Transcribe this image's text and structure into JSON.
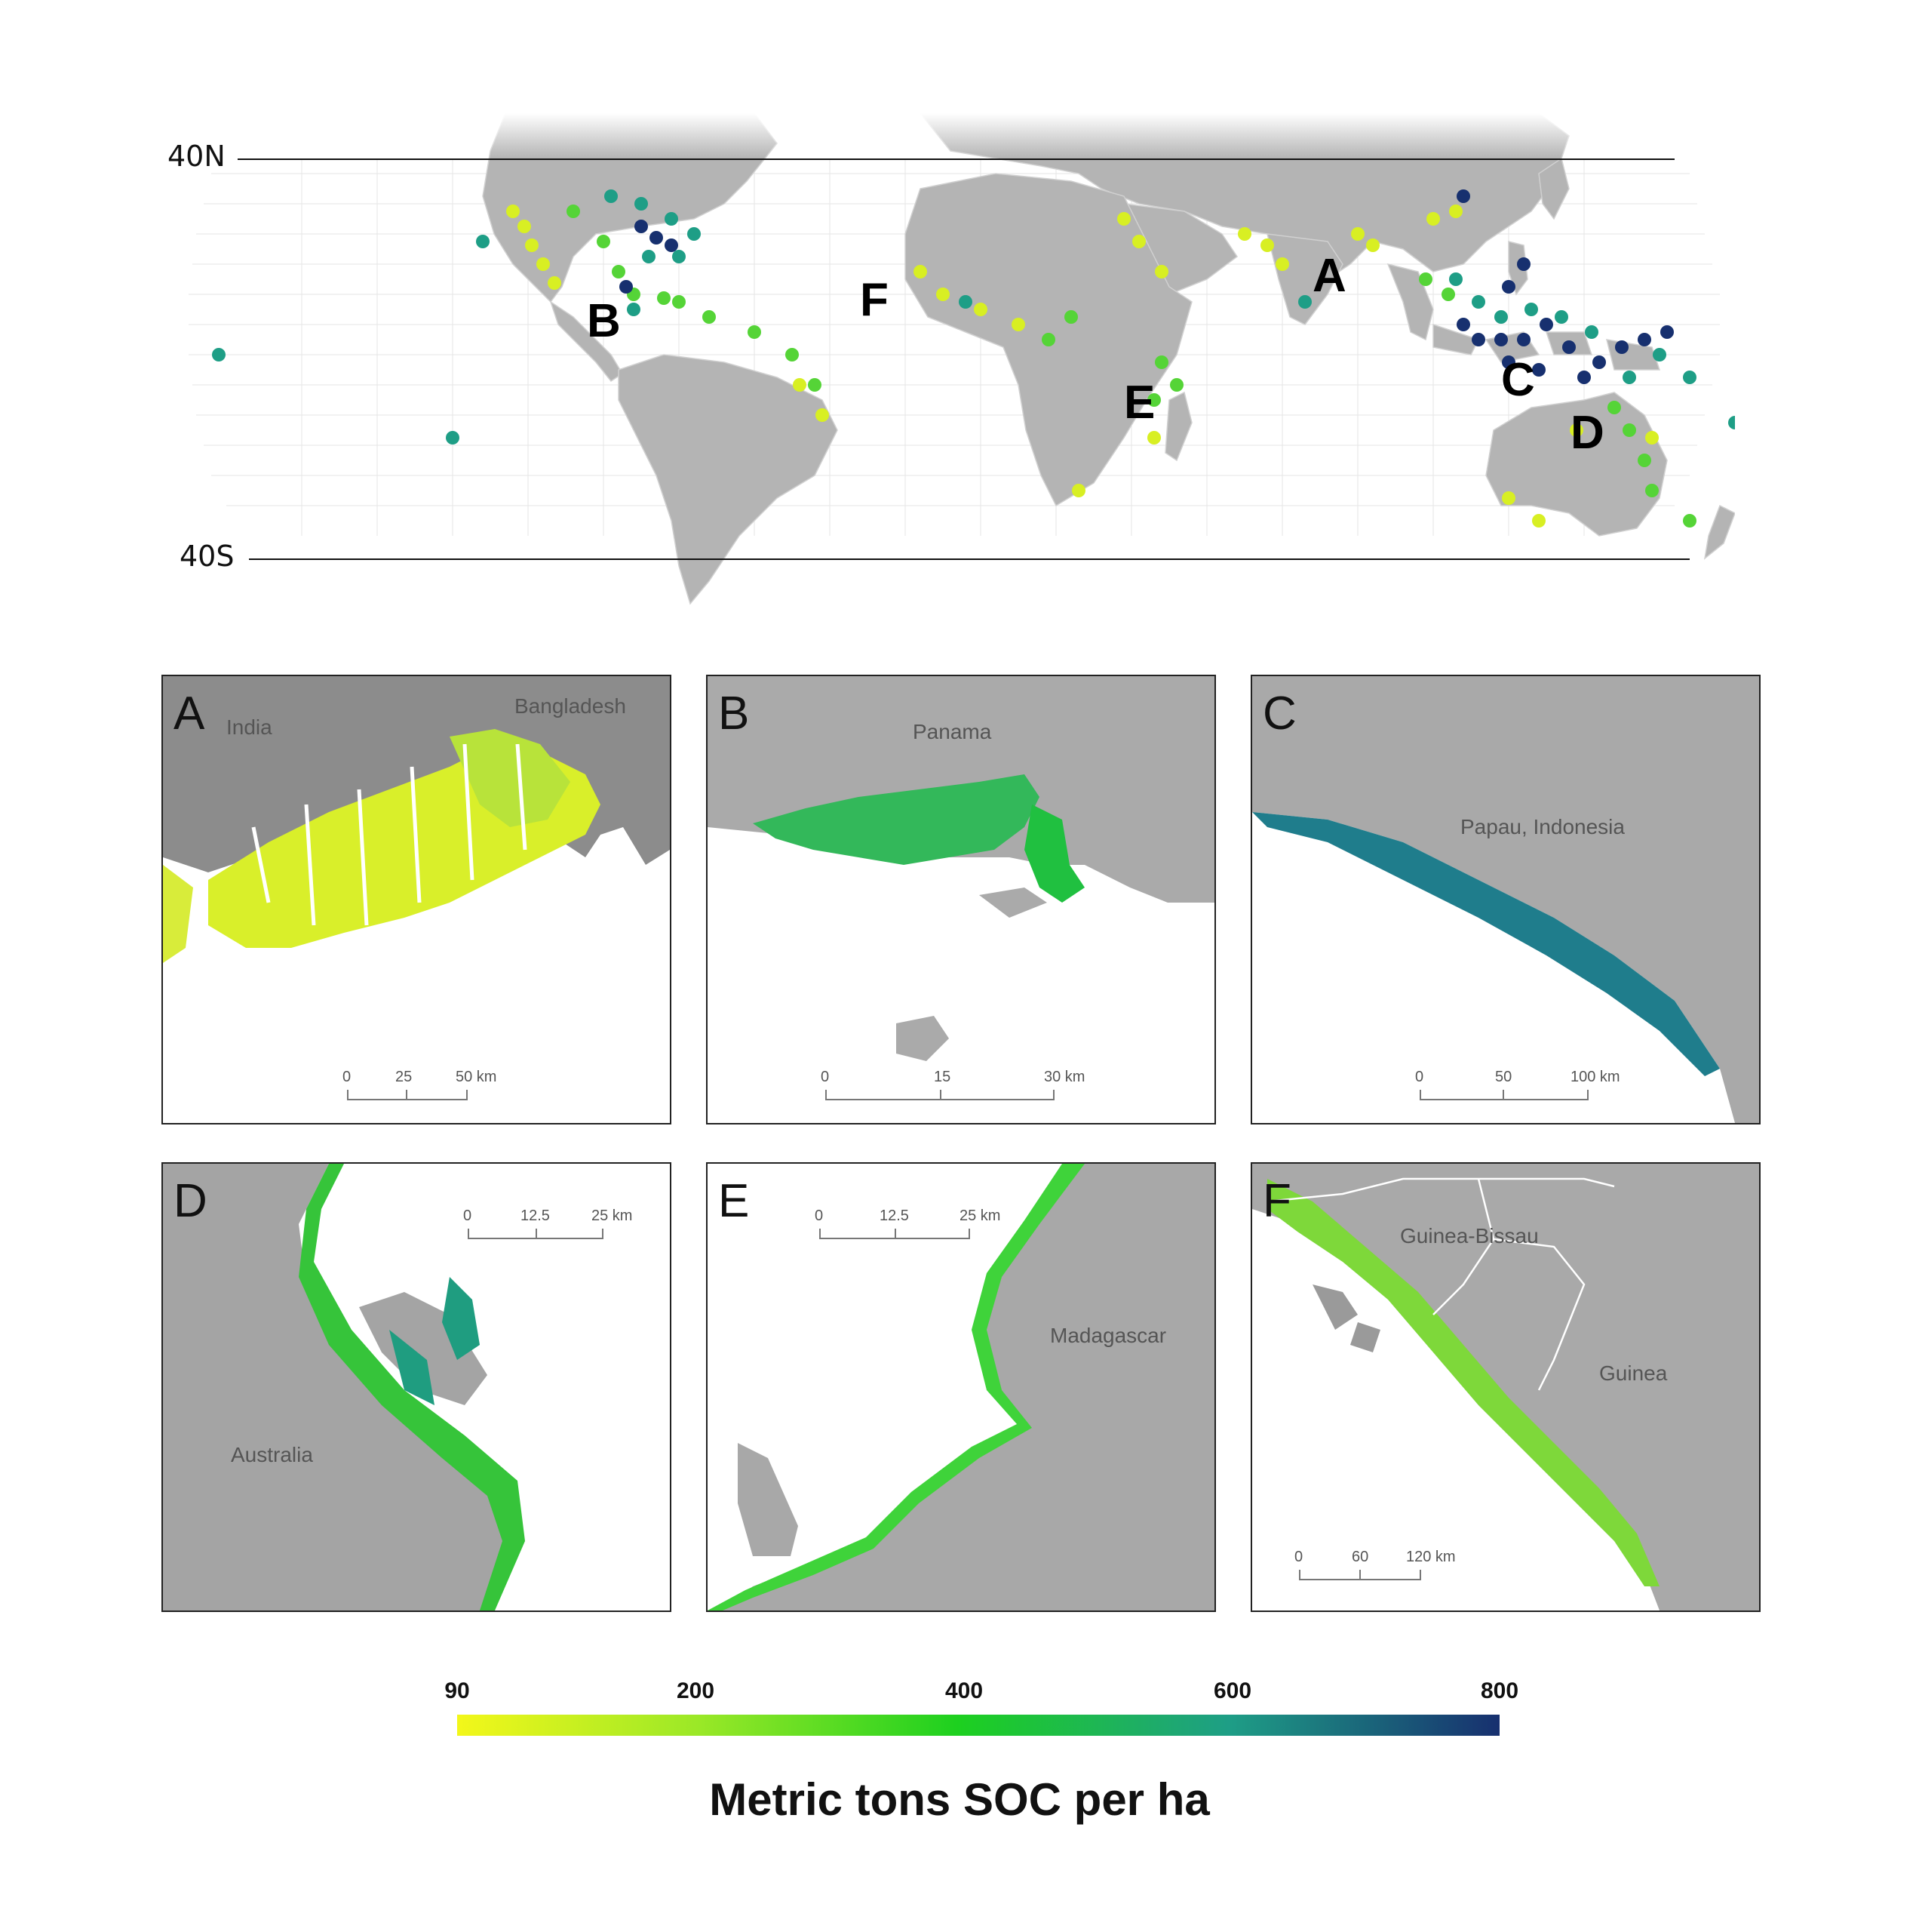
{
  "world_map": {
    "lat_labels": {
      "north": "40N",
      "south": "40S"
    },
    "region_letters": [
      "A",
      "B",
      "C",
      "D",
      "E",
      "F"
    ]
  },
  "panels": [
    {
      "letter": "A",
      "places": [
        "India",
        "Bangladesh"
      ],
      "scale": [
        "0",
        "25",
        "50 km"
      ]
    },
    {
      "letter": "B",
      "places": [
        "Panama"
      ],
      "scale": [
        "0",
        "15",
        "30 km"
      ]
    },
    {
      "letter": "C",
      "places": [
        "Papau, Indonesia"
      ],
      "scale": [
        "0",
        "50",
        "100 km"
      ]
    },
    {
      "letter": "D",
      "places": [
        "Australia"
      ],
      "scale": [
        "0",
        "12.5",
        "25 km"
      ]
    },
    {
      "letter": "E",
      "places": [
        "Madagascar"
      ],
      "scale": [
        "0",
        "12.5",
        "25 km"
      ]
    },
    {
      "letter": "F",
      "places": [
        "Guinea-Bissau",
        "Guinea"
      ],
      "scale": [
        "0",
        "60",
        "120 km"
      ]
    }
  ],
  "legend": {
    "ticks": [
      "90",
      "200",
      "400",
      "600",
      "800"
    ],
    "title": "Metric tons SOC per ha",
    "colors": [
      "#f3f71a",
      "#9be827",
      "#1dd01f",
      "#1e9e86",
      "#17306f"
    ]
  }
}
